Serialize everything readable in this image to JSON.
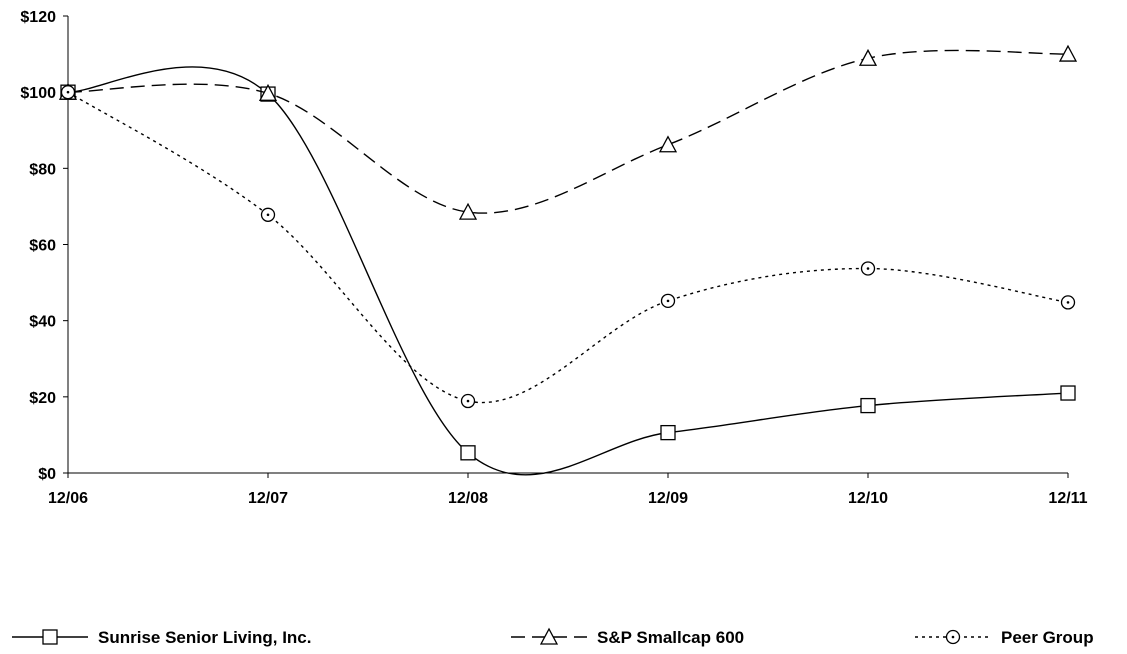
{
  "chart_data": {
    "type": "line",
    "title": "",
    "xlabel": "",
    "ylabel": "",
    "categories": [
      "12/06",
      "12/07",
      "12/08",
      "12/09",
      "12/10",
      "12/11"
    ],
    "y_ticks": [
      "$0",
      "$20",
      "$40",
      "$60",
      "$80",
      "$100",
      "$120"
    ],
    "ylim": [
      0,
      120
    ],
    "grid": false,
    "legend_position": "bottom",
    "series": [
      {
        "name": "Sunrise Senior Living, Inc.",
        "values": [
          100,
          99.5,
          5.3,
          10.6,
          17.7,
          21.0
        ],
        "marker": "square",
        "dash": "solid"
      },
      {
        "name": "S&P Smallcap 600",
        "values": [
          100,
          99.7,
          68.5,
          86.2,
          108.9,
          110.0
        ],
        "marker": "triangle",
        "dash": "long-dash"
      },
      {
        "name": "Peer Group",
        "values": [
          100,
          67.8,
          18.9,
          45.2,
          53.7,
          44.8
        ],
        "marker": "circle",
        "dash": "dotted"
      }
    ]
  }
}
